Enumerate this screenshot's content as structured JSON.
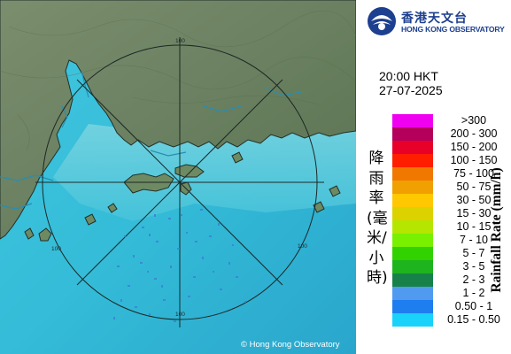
{
  "logo": {
    "chinese_name": "香港天文台",
    "english_name": "HONG KONG OBSERVATORY"
  },
  "observation": {
    "time": "20:00 HKT",
    "date": "27-07-2025"
  },
  "legend": {
    "title_zh": "降雨率(毫米/小時)",
    "title_en": "Rainfall Rate (mm/h)",
    "items": [
      {
        "label": ">300",
        "color": "#f000f0"
      },
      {
        "label": "200 - 300",
        "color": "#b4005a"
      },
      {
        "label": "150 - 200",
        "color": "#e80028"
      },
      {
        "label": "100 - 150",
        "color": "#ff1e00"
      },
      {
        "label": "75 - 100",
        "color": "#f07800"
      },
      {
        "label": "50 - 75",
        "color": "#f0a000"
      },
      {
        "label": "30 - 50",
        "color": "#ffc800"
      },
      {
        "label": "15 - 30",
        "color": "#dcd200"
      },
      {
        "label": "10 - 15",
        "color": "#b4e600"
      },
      {
        "label": "7 - 10",
        "color": "#78f000"
      },
      {
        "label": "5 - 7",
        "color": "#32d200"
      },
      {
        "label": "3 - 5",
        "color": "#1eb41e"
      },
      {
        "label": "2 - 3",
        "color": "#16824a"
      },
      {
        "label": "1 - 2",
        "color": "#509bf0"
      },
      {
        "label": "0.50 - 1",
        "color": "#1e7ef0"
      },
      {
        "label": "0.15 - 0.50",
        "color": "#19d2fa"
      }
    ]
  },
  "map": {
    "range_ring_labels": [
      "100",
      "100",
      "100",
      "100"
    ],
    "copyright": "© Hong Kong Observatory"
  },
  "colors": {
    "sea": "#34bcd8",
    "land": "#5f7a55",
    "brand": "#1d3f8f"
  }
}
